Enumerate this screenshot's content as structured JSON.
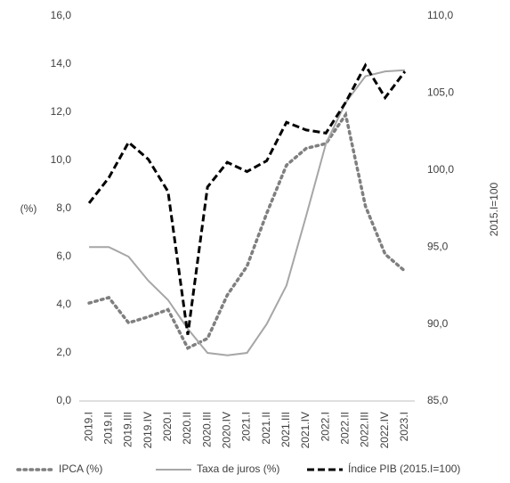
{
  "chart_data": {
    "type": "line",
    "ylabel": "(%)",
    "y2label": "2015.I=100",
    "categories": [
      "2019.I",
      "2019.II",
      "2019.III",
      "2019.IV",
      "2020.I",
      "2020.II",
      "2020.III",
      "2020.IV",
      "2021.I",
      "2021.II",
      "2021.III",
      "2021.IV",
      "2022.I",
      "2022.II",
      "2022.III",
      "2022.IV",
      "2023.I"
    ],
    "ylim": [
      0,
      16
    ],
    "yticks": [
      {
        "value": 0,
        "label": "0,0"
      },
      {
        "value": 2,
        "label": "2,0"
      },
      {
        "value": 4,
        "label": "4,0"
      },
      {
        "value": 6,
        "label": "6,0"
      },
      {
        "value": 8,
        "label": "8,0"
      },
      {
        "value": 10,
        "label": "10,0"
      },
      {
        "value": 12,
        "label": "12,0"
      },
      {
        "value": 14,
        "label": "14,0"
      },
      {
        "value": 16,
        "label": "16,0"
      }
    ],
    "y2lim": [
      85,
      110
    ],
    "y2ticks": [
      {
        "value": 85,
        "label": "85,0"
      },
      {
        "value": 90,
        "label": "90,0"
      },
      {
        "value": 95,
        "label": "95,0"
      },
      {
        "value": 100,
        "label": "100,0"
      },
      {
        "value": 105,
        "label": "105,0"
      },
      {
        "value": 110,
        "label": "110,0"
      }
    ],
    "grid": false,
    "legend": "bottom",
    "series": [
      {
        "name": "IPCA (%)",
        "color": "#7f7f7f",
        "dash": "dotted",
        "values": [
          4.07,
          4.3,
          3.25,
          3.5,
          3.8,
          2.2,
          2.6,
          4.4,
          5.6,
          7.8,
          9.8,
          10.5,
          10.7,
          11.9,
          8.1,
          6.1,
          5.4
        ]
      },
      {
        "name": "Taxa de juros (%)",
        "color": "#a6a6a6",
        "dash": "solid",
        "values": [
          6.4,
          6.4,
          6.0,
          5.0,
          4.2,
          3.0,
          2.0,
          1.9,
          2.0,
          3.2,
          4.8,
          7.7,
          10.7,
          12.4,
          13.5,
          13.7,
          13.75
        ]
      },
      {
        "name": "Índice PIB (2015.I=100)",
        "color": "#000000",
        "dash": "dashed",
        "axis": "y2",
        "values": [
          97.85,
          99.5,
          101.8,
          100.7,
          98.6,
          89.3,
          98.9,
          100.5,
          99.9,
          100.6,
          103.1,
          102.6,
          102.4,
          104.4,
          106.8,
          104.7,
          106.4
        ]
      }
    ]
  }
}
